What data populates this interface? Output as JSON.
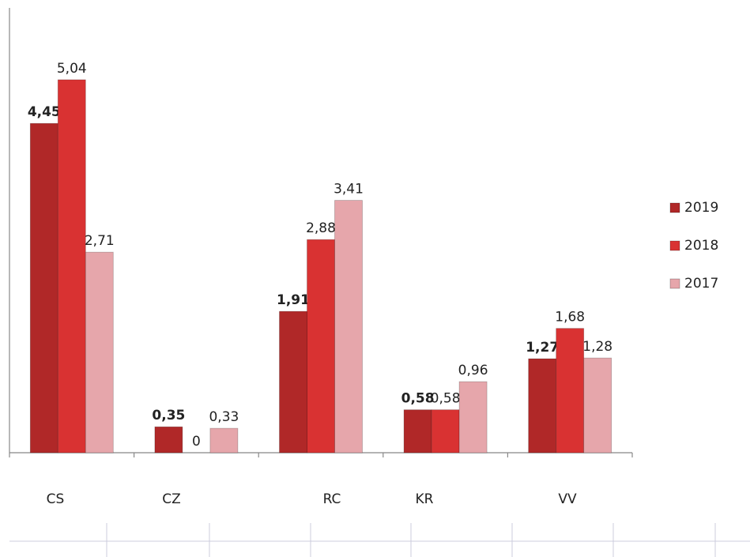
{
  "chart_data": {
    "type": "bar",
    "categories": [
      "CS",
      "CZ",
      "RC",
      "KR",
      "VV"
    ],
    "series": [
      {
        "name": "2019",
        "color": "#b02828",
        "values": [
          4.45,
          0.35,
          1.91,
          0.58,
          1.27
        ],
        "value_labels": [
          "4,45",
          "0,35",
          "1,91",
          "0,58",
          "1,27"
        ]
      },
      {
        "name": "2018",
        "color": "#d93232",
        "values": [
          5.04,
          0,
          2.88,
          0.58,
          1.68
        ],
        "value_labels": [
          "5,04",
          "0",
          "2,88",
          "0,58",
          "1,68"
        ]
      },
      {
        "name": "2017",
        "color": "#e6a6ab",
        "values": [
          2.71,
          0.33,
          3.41,
          0.96,
          1.28
        ],
        "value_labels": [
          "2,71",
          "0,33",
          "3,41",
          "0,96",
          "1,28"
        ]
      }
    ],
    "ylim": [
      0,
      6
    ],
    "legend": "right"
  }
}
